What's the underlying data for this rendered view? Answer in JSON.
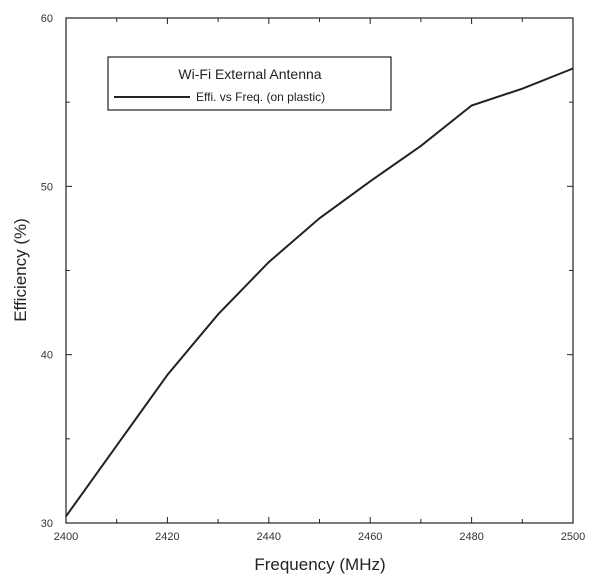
{
  "chart_data": {
    "type": "line",
    "title": "",
    "xlabel": "Frequency (MHz)",
    "ylabel": "Efficiency (%)",
    "xlim": [
      2400,
      2500
    ],
    "ylim": [
      30,
      60
    ],
    "x_ticks": [
      2400,
      2420,
      2440,
      2460,
      2480,
      2500
    ],
    "y_ticks": [
      30,
      40,
      50,
      60
    ],
    "x_tick_labels": [
      "2400",
      "2420",
      "2440",
      "2460",
      "2480",
      "2500"
    ],
    "y_tick_labels": [
      "30",
      "40",
      "50",
      "60"
    ],
    "grid": false,
    "legend": {
      "title": "Wi-Fi External Antenna",
      "placement": "top-left"
    },
    "series": [
      {
        "name": "Effi. vs Freq. (on plastic)",
        "color": "#222222",
        "x": [
          2400,
          2410,
          2420,
          2430,
          2440,
          2450,
          2460,
          2470,
          2480,
          2490,
          2500
        ],
        "y": [
          30.4,
          34.6,
          38.8,
          42.4,
          45.5,
          48.1,
          50.3,
          52.4,
          54.8,
          55.8,
          57.0
        ]
      }
    ]
  }
}
